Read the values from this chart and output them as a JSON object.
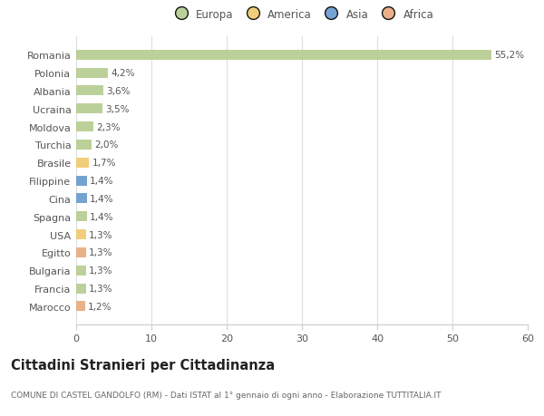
{
  "countries": [
    "Romania",
    "Polonia",
    "Albania",
    "Ucraina",
    "Moldova",
    "Turchia",
    "Brasile",
    "Filippine",
    "Cina",
    "Spagna",
    "USA",
    "Egitto",
    "Bulgaria",
    "Francia",
    "Marocco"
  ],
  "values": [
    55.2,
    4.2,
    3.6,
    3.5,
    2.3,
    2.0,
    1.7,
    1.4,
    1.4,
    1.4,
    1.3,
    1.3,
    1.3,
    1.3,
    1.2
  ],
  "labels": [
    "55,2%",
    "4,2%",
    "3,6%",
    "3,5%",
    "2,3%",
    "2,0%",
    "1,7%",
    "1,4%",
    "1,4%",
    "1,4%",
    "1,3%",
    "1,3%",
    "1,3%",
    "1,3%",
    "1,2%"
  ],
  "continents": [
    "Europa",
    "Europa",
    "Europa",
    "Europa",
    "Europa",
    "Europa",
    "America",
    "Asia",
    "Asia",
    "Europa",
    "America",
    "Africa",
    "Europa",
    "Europa",
    "Africa"
  ],
  "continent_colors": {
    "Europa": "#b5cc8e",
    "America": "#f0c96a",
    "Asia": "#6699cc",
    "Africa": "#e8a87c"
  },
  "legend_items": [
    "Europa",
    "America",
    "Asia",
    "Africa"
  ],
  "legend_colors": [
    "#b5cc8e",
    "#f0c96a",
    "#6699cc",
    "#e8a87c"
  ],
  "xlim": [
    0,
    60
  ],
  "xticks": [
    0,
    10,
    20,
    30,
    40,
    50,
    60
  ],
  "title": "Cittadini Stranieri per Cittadinanza",
  "subtitle": "COMUNE DI CASTEL GANDOLFO (RM) - Dati ISTAT al 1° gennaio di ogni anno - Elaborazione TUTTITALIA.IT",
  "background_color": "#ffffff",
  "grid_color": "#dddddd",
  "bar_height": 0.55,
  "figsize": [
    6.0,
    4.6
  ],
  "dpi": 100
}
